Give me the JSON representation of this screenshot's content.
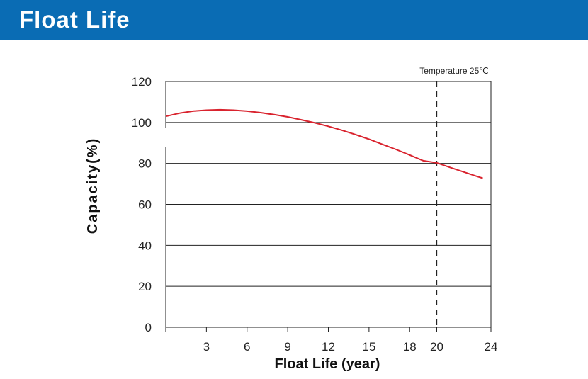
{
  "header": {
    "title": "Float Life",
    "background_color": "#0a6cb4"
  },
  "chart_data": {
    "type": "line",
    "title": "",
    "xlabel": "Float Life (year)",
    "ylabel": "Capacity(%)",
    "annotation": "Temperature 25℃",
    "marker_x": 20,
    "xlim": [
      0,
      24
    ],
    "ylim": [
      0,
      120
    ],
    "x_ticks": [
      3,
      6,
      9,
      12,
      15,
      18,
      20,
      24
    ],
    "y_ticks": [
      0,
      20,
      40,
      60,
      80,
      100,
      120
    ],
    "grid": "horizontal",
    "series": [
      {
        "color": "#d9232e",
        "x": [
          0,
          1,
          2,
          3,
          4,
          5,
          6,
          7,
          8,
          9,
          10,
          11,
          12,
          13,
          14,
          15,
          16,
          17,
          18,
          19,
          20,
          21,
          22,
          23,
          23.4
        ],
        "y": [
          103,
          104.5,
          105.5,
          106,
          106.2,
          106,
          105.5,
          104.8,
          103.8,
          102.7,
          101.3,
          99.8,
          98.1,
          96.2,
          94.1,
          91.8,
          89.3,
          86.8,
          84.1,
          81.3,
          80.3,
          78.0,
          75.8,
          73.6,
          72.8
        ]
      }
    ]
  }
}
